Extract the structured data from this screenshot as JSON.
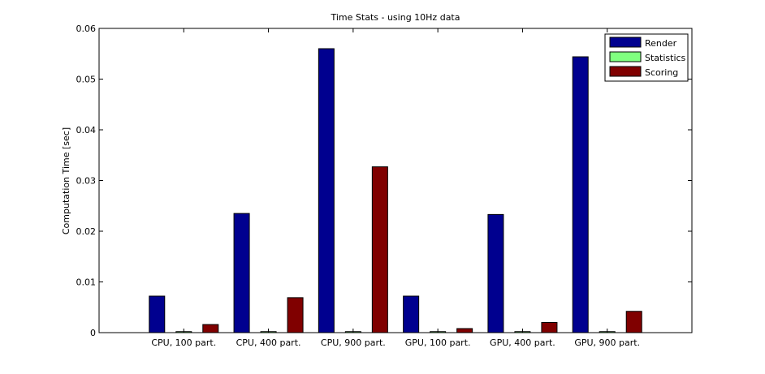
{
  "chart_data": {
    "type": "bar",
    "title": "Time Stats - using 10Hz data",
    "ylabel": "Computation Time [sec]",
    "xlabel": "",
    "categories": [
      "CPU, 100 part.",
      "CPU, 400 part.",
      "CPU, 900 part.",
      "GPU, 100 part.",
      "GPU, 400 part.",
      "GPU, 900 part."
    ],
    "ylim": [
      0,
      0.06
    ],
    "yticks": [
      "0",
      "0.01",
      "0.02",
      "0.03",
      "0.04",
      "0.05",
      "0.06"
    ],
    "grid": false,
    "legend_position": "top-right",
    "series": [
      {
        "name": "Render",
        "color": "#00008f",
        "values": [
          0.0072,
          0.0235,
          0.056,
          0.0072,
          0.0233,
          0.0544
        ]
      },
      {
        "name": "Statistics",
        "color": "#80ff80",
        "values": [
          0.0002,
          0.0002,
          0.0002,
          0.0002,
          0.0002,
          0.0002
        ]
      },
      {
        "name": "Scoring",
        "color": "#800000",
        "values": [
          0.0016,
          0.0069,
          0.0327,
          0.0008,
          0.002,
          0.0042
        ]
      }
    ]
  }
}
